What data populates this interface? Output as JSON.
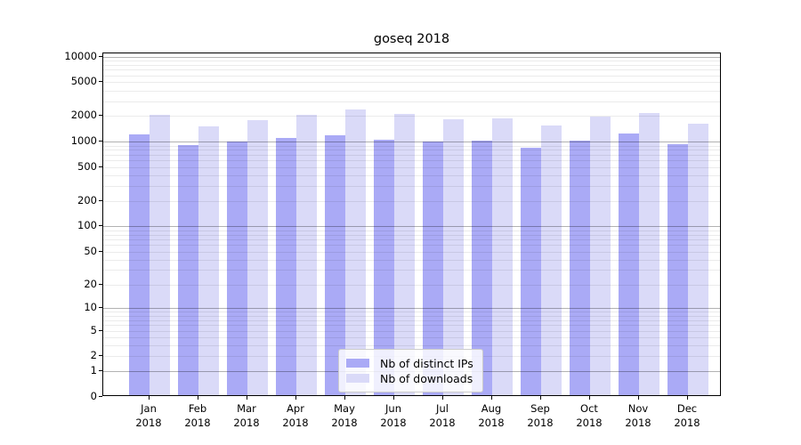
{
  "chart_data": {
    "type": "bar",
    "title": "goseq 2018",
    "categories": [
      "Jan",
      "Feb",
      "Mar",
      "Apr",
      "May",
      "Jun",
      "Jul",
      "Aug",
      "Sep",
      "Oct",
      "Nov",
      "Dec"
    ],
    "category_year_line": "2018",
    "series": [
      {
        "name": "Nb of distinct IPs",
        "color": "#aaaaf6",
        "values": [
          1150,
          860,
          965,
          1045,
          1130,
          1005,
          955,
          990,
          815,
          985,
          1180,
          890
        ]
      },
      {
        "name": "Nb of downloads",
        "color": "#dadaf8",
        "values": [
          1960,
          1430,
          1720,
          1950,
          2270,
          2000,
          1760,
          1790,
          1470,
          1880,
          2080,
          1550
        ]
      }
    ],
    "xlabel": "",
    "ylabel": "",
    "y_ticks": [
      10000,
      5000,
      2000,
      1000,
      500,
      200,
      100,
      50,
      20,
      10,
      5,
      2,
      1,
      0
    ],
    "ylim": [
      0,
      10000
    ],
    "y_scale": "symlog: y position proportional to log10(value+1)",
    "grid": "horizontal log gridlines; decade lines darker, minor lines faint",
    "legend_position": "lower center",
    "colors": {
      "decade_gridline": "rgba(0,0,0,0.30)",
      "minor_gridline": "rgba(0,0,0,0.08)",
      "axis": "#000000",
      "background": "#ffffff"
    }
  }
}
